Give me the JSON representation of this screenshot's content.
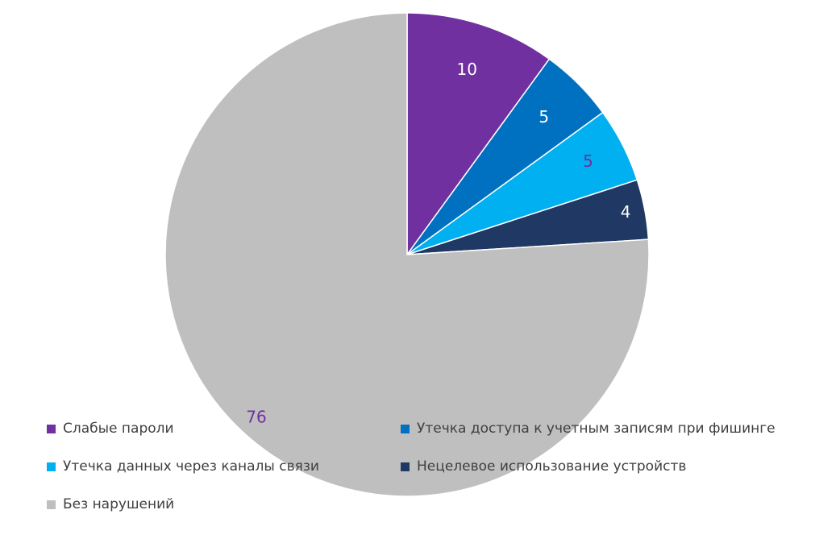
{
  "chart_data": {
    "type": "pie",
    "categories": [
      "Слабые пароли",
      "Утечка доступа к учетным записям при фишинге",
      "Утечка данных через каналы связи",
      "Нецелевое использование устройств",
      "Без нарушений"
    ],
    "values": [
      10,
      5,
      5,
      4,
      76
    ],
    "data_labels": [
      "10",
      "5",
      "5",
      "4",
      "76"
    ],
    "colors": [
      "#7030a0",
      "#0070c0",
      "#00b0f0",
      "#1f3864",
      "#bfbfbf"
    ],
    "label_colors": [
      "#ffffff",
      "#ffffff",
      "#7030a0",
      "#ffffff",
      "#7030a0"
    ],
    "start_angle_deg": 0,
    "direction": "clockwise",
    "legend_position": "bottom",
    "title": ""
  }
}
